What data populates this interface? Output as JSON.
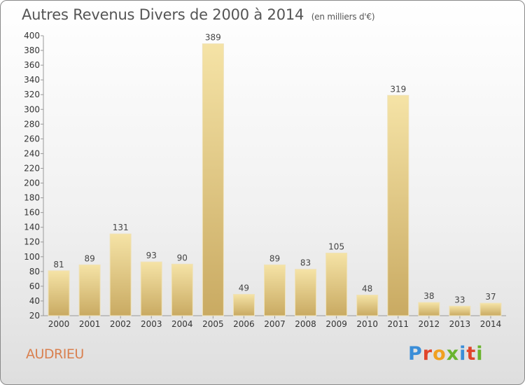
{
  "header": {
    "title": "Autres Revenus Divers de 2000 à 2014",
    "unit": "(en milliers d'€)"
  },
  "footer": {
    "town": "AUDRIEU",
    "logo_letters": [
      "P",
      "r",
      "o",
      "x",
      "i",
      "t",
      "i"
    ]
  },
  "colors": {
    "bar_light": "#f3df9e",
    "bar_dark": "#c8a960",
    "town": "#d9804f",
    "logo": [
      "#3b8ed8",
      "#e0452b",
      "#f0a020",
      "#6ab42e",
      "#3b8ed8",
      "#e0452b",
      "#6ab42e"
    ]
  },
  "chart_data": {
    "type": "bar",
    "title": "Autres Revenus Divers de 2000 à 2014",
    "subtitle": "(en milliers d'€)",
    "categories": [
      "2000",
      "2001",
      "2002",
      "2003",
      "2004",
      "2005",
      "2006",
      "2007",
      "2008",
      "2009",
      "2010",
      "2011",
      "2012",
      "2013",
      "2014"
    ],
    "values": [
      81,
      89,
      131,
      93,
      90,
      389,
      49,
      89,
      83,
      105,
      48,
      319,
      38,
      33,
      37
    ],
    "ylim": [
      20,
      400
    ],
    "yticks": [
      20,
      40,
      60,
      80,
      100,
      120,
      140,
      160,
      180,
      200,
      220,
      240,
      260,
      280,
      300,
      320,
      340,
      360,
      380,
      400
    ],
    "grid": false,
    "xlabel": "",
    "ylabel": ""
  }
}
